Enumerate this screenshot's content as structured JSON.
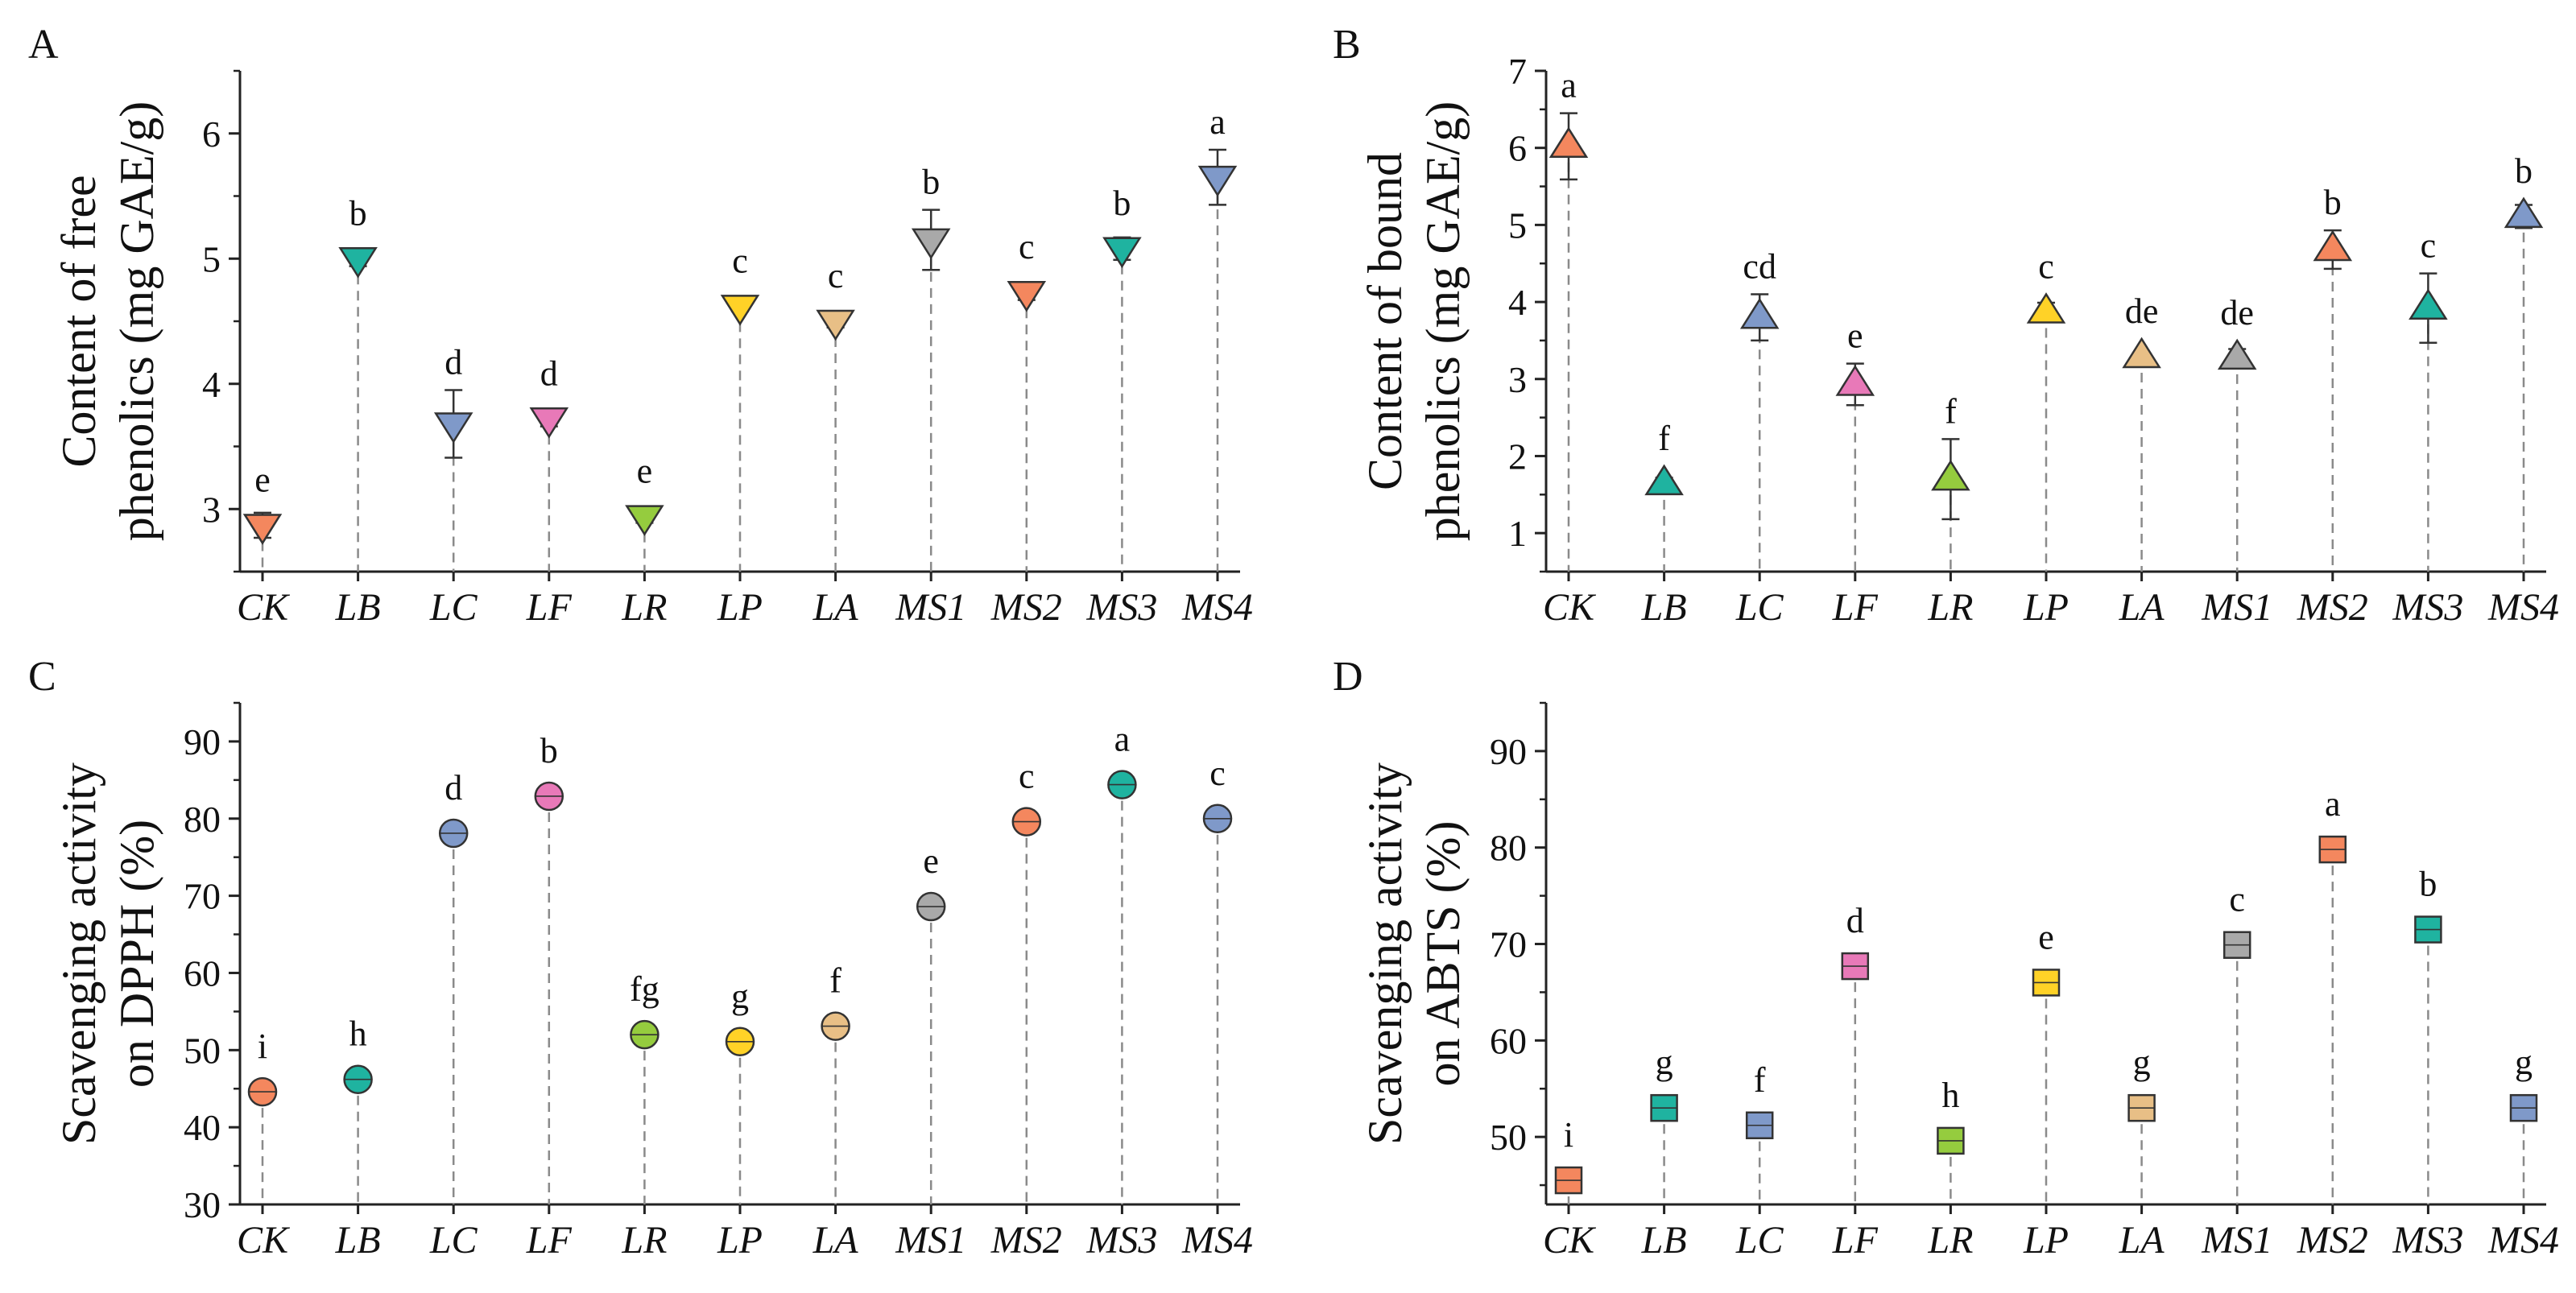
{
  "colors": [
    "#F4875E",
    "#1FB3A0",
    "#7F99C9",
    "#E879B8",
    "#95CC3E",
    "#FFD227",
    "#E8BF86",
    "#A9A9A9",
    "#F4875E",
    "#1FB3A0",
    "#7F99C9"
  ],
  "chart_data": [
    {
      "panel_letter": "A",
      "type": "scatter",
      "marker": "triangle-down",
      "categories": [
        "CK",
        "LB",
        "LC",
        "LF",
        "LR",
        "LP",
        "LA",
        "MS1",
        "MS2",
        "MS3",
        "MS4"
      ],
      "ylabel": [
        "Content of free",
        "phenolics (mg GAE/g)"
      ],
      "ylim": [
        2.5,
        6.5
      ],
      "yticks": [
        3,
        4,
        5,
        6
      ],
      "values": [
        2.87,
        5.0,
        3.68,
        3.72,
        2.94,
        4.62,
        4.5,
        5.15,
        4.73,
        5.08,
        5.65
      ],
      "errors": [
        0.1,
        0.06,
        0.27,
        0.06,
        0.05,
        0.04,
        0.05,
        0.24,
        0.06,
        0.09,
        0.22
      ],
      "letters": [
        "e",
        "b",
        "d",
        "d",
        "e",
        "c",
        "c",
        "b",
        "c",
        "b",
        "a"
      ]
    },
    {
      "panel_letter": "B",
      "type": "scatter",
      "marker": "triangle-up",
      "categories": [
        "CK",
        "LB",
        "LC",
        "LF",
        "LR",
        "LP",
        "LA",
        "MS1",
        "MS2",
        "MS3",
        "MS4"
      ],
      "ylabel": [
        "Content of bound",
        "phenolics (mg GAE/g)"
      ],
      "ylim": [
        0.5,
        7
      ],
      "yticks": [
        1,
        2,
        3,
        4,
        5,
        6,
        7
      ],
      "values": [
        6.02,
        1.64,
        3.8,
        2.93,
        1.7,
        3.87,
        3.29,
        3.27,
        4.68,
        3.92,
        5.11
      ],
      "errors": [
        0.43,
        0.08,
        0.3,
        0.27,
        0.52,
        0.12,
        0.05,
        0.12,
        0.25,
        0.45,
        0.15
      ],
      "letters": [
        "a",
        "f",
        "cd",
        "e",
        "f",
        "c",
        "de",
        "de",
        "b",
        "c",
        "b"
      ]
    },
    {
      "panel_letter": "C",
      "type": "scatter",
      "marker": "circle",
      "categories": [
        "CK",
        "LB",
        "LC",
        "LF",
        "LR",
        "LP",
        "LA",
        "MS1",
        "MS2",
        "MS3",
        "MS4"
      ],
      "ylabel": [
        "Scavenging activity",
        "on DPPH (%)"
      ],
      "ylim": [
        30,
        95
      ],
      "yticks": [
        30,
        40,
        50,
        60,
        70,
        80,
        90
      ],
      "values": [
        44.6,
        46.2,
        78.1,
        82.9,
        52.0,
        51.1,
        53.1,
        68.6,
        79.6,
        84.4,
        80.0
      ],
      "errors": [
        0.5,
        1.0,
        0.5,
        0.5,
        0.5,
        0.5,
        0.5,
        0.5,
        0.5,
        0.5,
        0.5
      ],
      "letters": [
        "i",
        "h",
        "d",
        "b",
        "fg",
        "g",
        "f",
        "e",
        "c",
        "a",
        "c"
      ]
    },
    {
      "panel_letter": "D",
      "type": "scatter",
      "marker": "square",
      "categories": [
        "CK",
        "LB",
        "LC",
        "LF",
        "LR",
        "LP",
        "LA",
        "MS1",
        "MS2",
        "MS3",
        "MS4"
      ],
      "ylabel": [
        "Scavenging activity",
        "on ABTS (%)"
      ],
      "ylim": [
        43,
        95
      ],
      "yticks": [
        50,
        60,
        70,
        80,
        90
      ],
      "values": [
        45.5,
        53.0,
        51.2,
        67.7,
        49.6,
        66.0,
        53.0,
        69.9,
        79.8,
        71.5,
        53.0
      ],
      "errors": [
        0.4,
        0.4,
        0.4,
        0.4,
        0.4,
        0.4,
        0.4,
        0.4,
        0.4,
        0.4,
        0.4
      ],
      "letters": [
        "i",
        "g",
        "f",
        "d",
        "h",
        "e",
        "g",
        "c",
        "a",
        "b",
        "g"
      ]
    }
  ]
}
